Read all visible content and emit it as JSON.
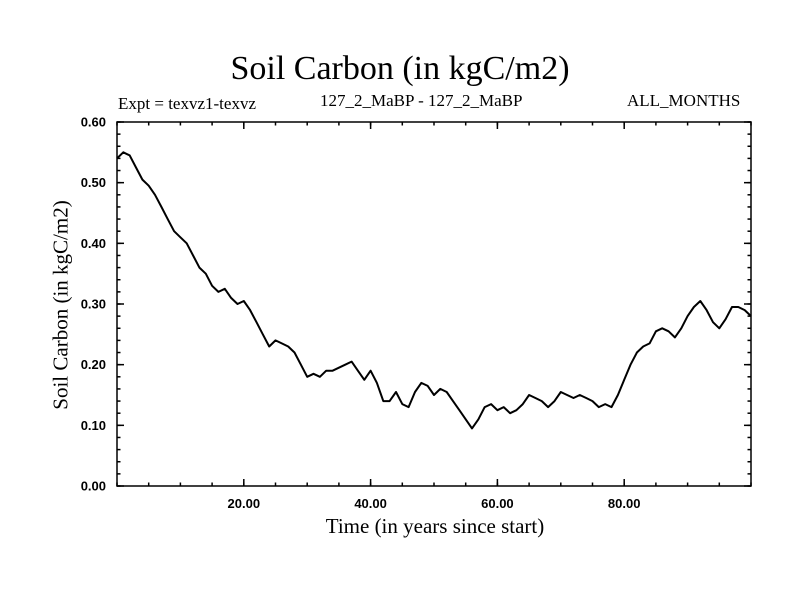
{
  "chart_data": {
    "type": "line",
    "title": "Soil Carbon (in kgC/m2)",
    "subtitle_left": "Expt = texvz1-texvz",
    "subtitle_center": "127_2_MaBP - 127_2_MaBP",
    "subtitle_right": "ALL_MONTHS",
    "xlabel": "Time (in years since start)",
    "ylabel": "Soil Carbon (in kgC/m2)",
    "xlim": [
      0,
      100
    ],
    "ylim": [
      0,
      0.6
    ],
    "x_ticks": [
      20,
      40,
      60,
      80
    ],
    "x_tick_labels": [
      "20.00",
      "40.00",
      "60.00",
      "80.00"
    ],
    "y_ticks": [
      0,
      0.1,
      0.2,
      0.3,
      0.4,
      0.5,
      0.6
    ],
    "y_tick_labels": [
      "0.00",
      "0.10",
      "0.20",
      "0.30",
      "0.40",
      "0.50",
      "0.60"
    ],
    "grid": false,
    "series": [
      {
        "name": "Soil Carbon",
        "color": "#000000",
        "x": [
          0,
          1,
          2,
          3,
          4,
          5,
          6,
          7,
          8,
          9,
          10,
          11,
          12,
          13,
          14,
          15,
          16,
          17,
          18,
          19,
          20,
          21,
          22,
          23,
          24,
          25,
          26,
          27,
          28,
          29,
          30,
          31,
          32,
          33,
          34,
          35,
          36,
          37,
          38,
          39,
          40,
          41,
          42,
          43,
          44,
          45,
          46,
          47,
          48,
          49,
          50,
          51,
          52,
          53,
          54,
          55,
          56,
          57,
          58,
          59,
          60,
          61,
          62,
          63,
          64,
          65,
          66,
          67,
          68,
          69,
          70,
          71,
          72,
          73,
          74,
          75,
          76,
          77,
          78,
          79,
          80,
          81,
          82,
          83,
          84,
          85,
          86,
          87,
          88,
          89,
          90,
          91,
          92,
          93,
          94,
          95,
          96,
          97,
          98,
          99,
          100
        ],
        "y": [
          0.54,
          0.55,
          0.545,
          0.525,
          0.505,
          0.495,
          0.48,
          0.46,
          0.44,
          0.42,
          0.41,
          0.4,
          0.38,
          0.36,
          0.35,
          0.33,
          0.32,
          0.325,
          0.31,
          0.3,
          0.305,
          0.29,
          0.27,
          0.25,
          0.23,
          0.24,
          0.235,
          0.23,
          0.22,
          0.2,
          0.18,
          0.185,
          0.18,
          0.19,
          0.19,
          0.195,
          0.2,
          0.205,
          0.19,
          0.175,
          0.19,
          0.17,
          0.14,
          0.14,
          0.155,
          0.135,
          0.13,
          0.155,
          0.17,
          0.165,
          0.15,
          0.16,
          0.155,
          0.14,
          0.125,
          0.11,
          0.095,
          0.11,
          0.13,
          0.135,
          0.125,
          0.13,
          0.12,
          0.125,
          0.135,
          0.15,
          0.145,
          0.14,
          0.13,
          0.14,
          0.155,
          0.15,
          0.145,
          0.15,
          0.145,
          0.14,
          0.13,
          0.135,
          0.13,
          0.15,
          0.175,
          0.2,
          0.22,
          0.23,
          0.235,
          0.255,
          0.26,
          0.255,
          0.245,
          0.26,
          0.28,
          0.295,
          0.305,
          0.29,
          0.27,
          0.26,
          0.275,
          0.295,
          0.295,
          0.29,
          0.28
        ]
      }
    ]
  }
}
